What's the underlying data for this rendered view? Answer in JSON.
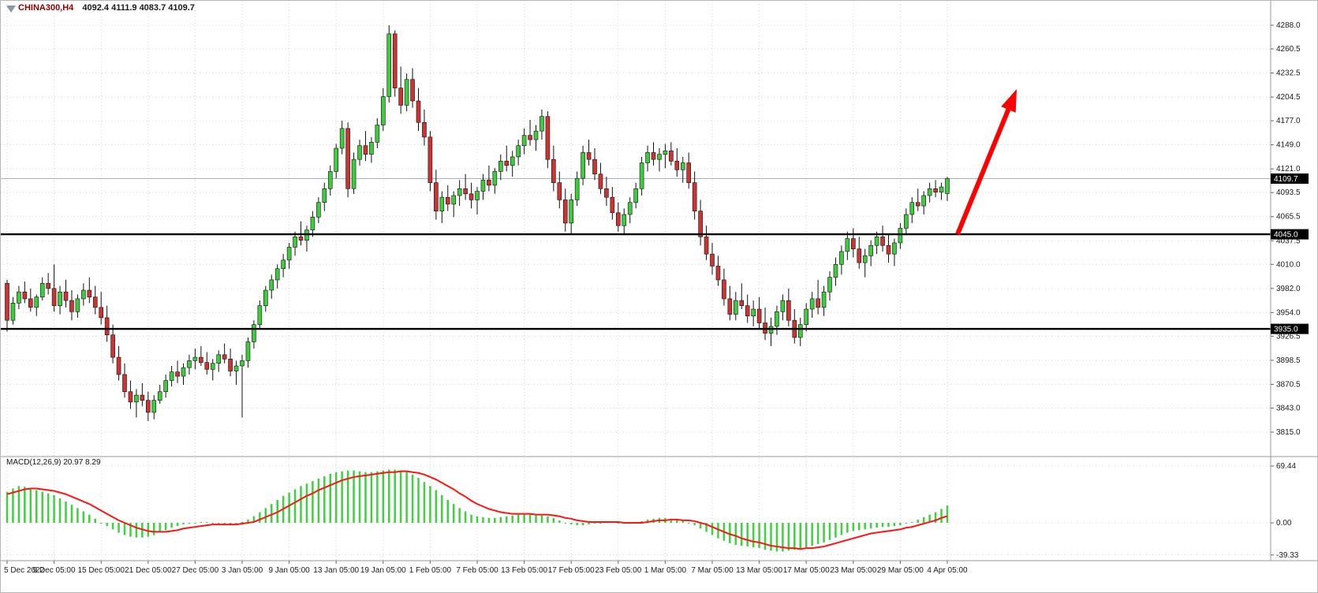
{
  "window_title": "CHINA300,H4",
  "colors": {
    "background": "#ffffff",
    "grid": "#d4d4d4",
    "bull_candle": "#3ecc3e",
    "bear_candle": "#cc3333",
    "candle_outline": "#111111",
    "hline": "#000000",
    "current_price_line": "#aab4bd",
    "histogram": "#3fd03f",
    "signal_line": "#ff1414",
    "arrow": "#ff0000",
    "axis_text": "#1a1a1a",
    "label_box_bg": "#000000",
    "label_box_text": "#ffffff",
    "separator": "#9a9a9a"
  },
  "chart_data": {
    "type": "candlestick",
    "symbol_period": "CHINA300,H4",
    "ohlc_text": "4092.4 4111.9 4083.7 4109.7",
    "ohlc": {
      "open": 4092.4,
      "high": 4111.9,
      "low": 4083.7,
      "close": 4109.7
    },
    "current_price": {
      "value": 4109.7,
      "label": "4109.7"
    },
    "price_ticks": [
      4288.0,
      4260.5,
      4232.5,
      4204.5,
      4177.0,
      4149.0,
      4121.0,
      4093.5,
      4065.5,
      4037.5,
      4010.0,
      3982.0,
      3954.0,
      3926.5,
      3898.5,
      3870.5,
      3843.0,
      3815.0
    ],
    "horizontal_lines": [
      {
        "price": 4045.0,
        "label": "4045.0"
      },
      {
        "price": 3935.0,
        "label": "3935.0"
      }
    ],
    "annotations": {
      "trend_arrow_up": true
    },
    "time_labels": [
      "5 Dec 2022",
      "9 Dec 05:00",
      "15 Dec 05:00",
      "21 Dec 05:00",
      "27 Dec 05:00",
      "3 Jan 05:00",
      "9 Jan 05:00",
      "13 Jan 05:00",
      "19 Jan 05:00",
      "1 Feb 05:00",
      "7 Feb 05:00",
      "13 Feb 05:00",
      "17 Feb 05:00",
      "23 Feb 05:00",
      "1 Mar 05:00",
      "7 Mar 05:00",
      "13 Mar 05:00",
      "17 Mar 05:00",
      "23 Mar 05:00",
      "29 Mar 05:00",
      "4 Apr 05:00"
    ],
    "bars_per_label": 8,
    "candles": [
      [
        3988,
        3992,
        3932,
        3945
      ],
      [
        3945,
        3972,
        3940,
        3965
      ],
      [
        3965,
        3985,
        3958,
        3978
      ],
      [
        3978,
        3990,
        3965,
        3970
      ],
      [
        3970,
        3982,
        3955,
        3960
      ],
      [
        3960,
        3975,
        3950,
        3972
      ],
      [
        3972,
        3995,
        3968,
        3988
      ],
      [
        3988,
        4000,
        3975,
        3982
      ],
      [
        3982,
        4010,
        3955,
        3962
      ],
      [
        3962,
        3985,
        3952,
        3978
      ],
      [
        3978,
        3992,
        3960,
        3968
      ],
      [
        3968,
        3980,
        3945,
        3955
      ],
      [
        3955,
        3975,
        3948,
        3970
      ],
      [
        3970,
        3988,
        3962,
        3980
      ],
      [
        3980,
        3995,
        3965,
        3972
      ],
      [
        3972,
        3985,
        3952,
        3960
      ],
      [
        3960,
        3978,
        3940,
        3948
      ],
      [
        3948,
        3962,
        3920,
        3928
      ],
      [
        3928,
        3940,
        3895,
        3902
      ],
      [
        3902,
        3915,
        3875,
        3882
      ],
      [
        3882,
        3895,
        3855,
        3862
      ],
      [
        3862,
        3875,
        3842,
        3850
      ],
      [
        3850,
        3865,
        3832,
        3858
      ],
      [
        3858,
        3872,
        3845,
        3852
      ],
      [
        3852,
        3862,
        3828,
        3838
      ],
      [
        3838,
        3858,
        3830,
        3852
      ],
      [
        3852,
        3870,
        3848,
        3862
      ],
      [
        3862,
        3882,
        3855,
        3875
      ],
      [
        3875,
        3892,
        3868,
        3885
      ],
      [
        3885,
        3898,
        3872,
        3880
      ],
      [
        3880,
        3895,
        3870,
        3890
      ],
      [
        3890,
        3905,
        3882,
        3898
      ],
      [
        3898,
        3912,
        3888,
        3902
      ],
      [
        3902,
        3915,
        3892,
        3896
      ],
      [
        3896,
        3908,
        3882,
        3888
      ],
      [
        3888,
        3900,
        3875,
        3895
      ],
      [
        3895,
        3910,
        3885,
        3905
      ],
      [
        3905,
        3918,
        3895,
        3900
      ],
      [
        3900,
        3912,
        3880,
        3886
      ],
      [
        3886,
        3898,
        3870,
        3892
      ],
      [
        3892,
        3905,
        3832,
        3898
      ],
      [
        3898,
        3925,
        3890,
        3920
      ],
      [
        3920,
        3945,
        3912,
        3940
      ],
      [
        3940,
        3968,
        3935,
        3962
      ],
      [
        3962,
        3985,
        3955,
        3980
      ],
      [
        3980,
        3998,
        3970,
        3992
      ],
      [
        3992,
        4010,
        3982,
        4005
      ],
      [
        4005,
        4022,
        3995,
        4015
      ],
      [
        4015,
        4035,
        4005,
        4030
      ],
      [
        4030,
        4048,
        4020,
        4042
      ],
      [
        4042,
        4060,
        4032,
        4038
      ],
      [
        4038,
        4055,
        4025,
        4050
      ],
      [
        4050,
        4072,
        4042,
        4065
      ],
      [
        4065,
        4088,
        4058,
        4082
      ],
      [
        4082,
        4105,
        4072,
        4098
      ],
      [
        4098,
        4125,
        4090,
        4118
      ],
      [
        4118,
        4150,
        4110,
        4145
      ],
      [
        4145,
        4177,
        4138,
        4168
      ],
      [
        4168,
        4175,
        4088,
        4098
      ],
      [
        4098,
        4140,
        4092,
        4132
      ],
      [
        4132,
        4155,
        4125,
        4148
      ],
      [
        4148,
        4165,
        4130,
        4138
      ],
      [
        4138,
        4158,
        4128,
        4152
      ],
      [
        4152,
        4180,
        4145,
        4172
      ],
      [
        4172,
        4215,
        4165,
        4205
      ],
      [
        4205,
        4288,
        4198,
        4278
      ],
      [
        4278,
        4282,
        4205,
        4215
      ],
      [
        4215,
        4240,
        4185,
        4195
      ],
      [
        4195,
        4232,
        4188,
        4225
      ],
      [
        4225,
        4238,
        4192,
        4200
      ],
      [
        4200,
        4215,
        4165,
        4175
      ],
      [
        4175,
        4190,
        4148,
        4158
      ],
      [
        4158,
        4165,
        4095,
        4105
      ],
      [
        4105,
        4120,
        4062,
        4072
      ],
      [
        4072,
        4095,
        4058,
        4088
      ],
      [
        4088,
        4102,
        4072,
        4080
      ],
      [
        4080,
        4095,
        4065,
        4090
      ],
      [
        4090,
        4108,
        4078,
        4098
      ],
      [
        4098,
        4115,
        4085,
        4092
      ],
      [
        4092,
        4105,
        4075,
        4085
      ],
      [
        4085,
        4100,
        4068,
        4095
      ],
      [
        4095,
        4115,
        4085,
        4108
      ],
      [
        4108,
        4125,
        4095,
        4102
      ],
      [
        4102,
        4122,
        4092,
        4118
      ],
      [
        4118,
        4138,
        4108,
        4130
      ],
      [
        4130,
        4148,
        4118,
        4125
      ],
      [
        4125,
        4142,
        4112,
        4135
      ],
      [
        4135,
        4155,
        4125,
        4148
      ],
      [
        4148,
        4168,
        4138,
        4160
      ],
      [
        4160,
        4178,
        4148,
        4155
      ],
      [
        4155,
        4172,
        4142,
        4165
      ],
      [
        4165,
        4190,
        4155,
        4182
      ],
      [
        4182,
        4188,
        4122,
        4132
      ],
      [
        4132,
        4148,
        4095,
        4105
      ],
      [
        4105,
        4118,
        4075,
        4085
      ],
      [
        4085,
        4098,
        4048,
        4058
      ],
      [
        4058,
        4092,
        4045,
        4085
      ],
      [
        4085,
        4118,
        4078,
        4110
      ],
      [
        4110,
        4148,
        4102,
        4140
      ],
      [
        4140,
        4155,
        4125,
        4132
      ],
      [
        4132,
        4145,
        4108,
        4115
      ],
      [
        4115,
        4128,
        4092,
        4098
      ],
      [
        4098,
        4112,
        4078,
        4088
      ],
      [
        4088,
        4100,
        4062,
        4070
      ],
      [
        4070,
        4082,
        4048,
        4055
      ],
      [
        4055,
        4075,
        4045,
        4068
      ],
      [
        4068,
        4088,
        4058,
        4082
      ],
      [
        4082,
        4105,
        4075,
        4098
      ],
      [
        4098,
        4135,
        4090,
        4128
      ],
      [
        4128,
        4148,
        4118,
        4140
      ],
      [
        4140,
        4152,
        4125,
        4132
      ],
      [
        4132,
        4145,
        4118,
        4138
      ],
      [
        4138,
        4150,
        4122,
        4142
      ],
      [
        4142,
        4152,
        4125,
        4130
      ],
      [
        4130,
        4145,
        4112,
        4120
      ],
      [
        4120,
        4135,
        4105,
        4128
      ],
      [
        4128,
        4140,
        4098,
        4105
      ],
      [
        4105,
        4118,
        4062,
        4072
      ],
      [
        4072,
        4085,
        4032,
        4042
      ],
      [
        4042,
        4055,
        4015,
        4022
      ],
      [
        4022,
        4035,
        3998,
        4008
      ],
      [
        4008,
        4020,
        3985,
        3992
      ],
      [
        3992,
        4005,
        3962,
        3970
      ],
      [
        3970,
        3985,
        3945,
        3952
      ],
      [
        3952,
        3978,
        3945,
        3968
      ],
      [
        3968,
        3988,
        3958,
        3962
      ],
      [
        3962,
        3975,
        3942,
        3950
      ],
      [
        3950,
        3968,
        3938,
        3958
      ],
      [
        3958,
        3972,
        3935,
        3942
      ],
      [
        3942,
        3960,
        3922,
        3930
      ],
      [
        3930,
        3948,
        3915,
        3938
      ],
      [
        3938,
        3962,
        3928,
        3955
      ],
      [
        3955,
        3975,
        3945,
        3968
      ],
      [
        3968,
        3982,
        3938,
        3945
      ],
      [
        3945,
        3958,
        3918,
        3925
      ],
      [
        3925,
        3948,
        3915,
        3940
      ],
      [
        3940,
        3965,
        3932,
        3958
      ],
      [
        3958,
        3978,
        3948,
        3970
      ],
      [
        3970,
        3992,
        3952,
        3960
      ],
      [
        3960,
        3985,
        3950,
        3978
      ],
      [
        3978,
        4002,
        3968,
        3995
      ],
      [
        3995,
        4018,
        3985,
        4010
      ],
      [
        4010,
        4032,
        3998,
        4025
      ],
      [
        4025,
        4048,
        4015,
        4040
      ],
      [
        4040,
        4052,
        4018,
        4028
      ],
      [
        4028,
        4042,
        4005,
        4012
      ],
      [
        4012,
        4028,
        3995,
        4020
      ],
      [
        4020,
        4038,
        4008,
        4032
      ],
      [
        4032,
        4048,
        4022,
        4042
      ],
      [
        4042,
        4055,
        4025,
        4032
      ],
      [
        4032,
        4045,
        4012,
        4022
      ],
      [
        4022,
        4040,
        4008,
        4035
      ],
      [
        4035,
        4058,
        4028,
        4052
      ],
      [
        4052,
        4075,
        4045,
        4068
      ],
      [
        4068,
        4088,
        4058,
        4082
      ],
      [
        4082,
        4098,
        4072,
        4078
      ],
      [
        4078,
        4095,
        4068,
        4090
      ],
      [
        4090,
        4105,
        4082,
        4098
      ],
      [
        4098,
        4108,
        4088,
        4094
      ],
      [
        4094,
        4105,
        4085,
        4100
      ],
      [
        4092.4,
        4111.9,
        4083.7,
        4109.7
      ]
    ],
    "macd": {
      "label": "MACD(12,26,9) 20.97 8.29",
      "main_value": 20.97,
      "signal_value": 8.29,
      "axis_tick_labels": [
        "69.44",
        "0.00",
        "-39.33"
      ],
      "axis_values": [
        69.44,
        0.0,
        -39.33
      ],
      "histogram": [
        38,
        42,
        45,
        44,
        42,
        40,
        38,
        36,
        34,
        30,
        26,
        22,
        18,
        14,
        10,
        5,
        0,
        -4,
        -8,
        -12,
        -15,
        -17,
        -18,
        -18,
        -17,
        -15,
        -12,
        -9,
        -6,
        -4,
        -2,
        -1,
        0,
        1,
        1,
        0,
        -1,
        -2,
        -2,
        -1,
        1,
        4,
        8,
        13,
        18,
        23,
        28,
        33,
        37,
        41,
        45,
        48,
        51,
        54,
        57,
        60,
        62,
        63,
        64,
        64,
        63,
        62,
        62,
        63,
        64,
        65,
        65,
        64,
        62,
        59,
        55,
        50,
        45,
        40,
        34,
        28,
        23,
        18,
        14,
        10,
        8,
        7,
        6,
        6,
        7,
        8,
        9,
        10,
        10,
        10,
        9,
        9,
        8,
        6,
        3,
        0,
        -2,
        -3,
        -3,
        -2,
        -1,
        0,
        1,
        1,
        0,
        -1,
        -1,
        0,
        2,
        4,
        5,
        6,
        6,
        5,
        4,
        2,
        0,
        -3,
        -7,
        -11,
        -15,
        -19,
        -22,
        -25,
        -27,
        -28,
        -29,
        -30,
        -31,
        -33,
        -34,
        -35,
        -35,
        -34,
        -33,
        -32,
        -30,
        -28,
        -26,
        -24,
        -21,
        -18,
        -15,
        -12,
        -10,
        -9,
        -8,
        -7,
        -6,
        -5,
        -5,
        -4,
        -3,
        -1,
        1,
        4,
        7,
        10,
        13,
        17,
        20.97
      ],
      "signal": [
        35,
        37,
        39,
        41,
        42,
        42,
        41,
        40,
        39,
        37,
        35,
        32,
        29,
        26,
        23,
        19,
        15,
        11,
        7,
        3,
        0,
        -3,
        -6,
        -8,
        -10,
        -11,
        -11,
        -11,
        -10,
        -9,
        -7,
        -6,
        -5,
        -4,
        -3,
        -2,
        -2,
        -2,
        -2,
        -2,
        -1,
        0,
        1,
        4,
        7,
        10,
        13,
        17,
        21,
        25,
        29,
        33,
        36,
        40,
        43,
        46,
        49,
        52,
        54,
        56,
        57,
        58,
        59,
        60,
        61,
        62,
        62,
        63,
        63,
        62,
        61,
        59,
        56,
        53,
        49,
        45,
        41,
        36,
        32,
        27,
        23,
        20,
        17,
        15,
        13,
        12,
        11,
        11,
        11,
        11,
        10,
        10,
        10,
        9,
        8,
        6,
        5,
        3,
        2,
        1,
        1,
        1,
        1,
        1,
        1,
        0,
        0,
        0,
        0,
        1,
        2,
        3,
        3,
        4,
        4,
        3,
        3,
        2,
        0,
        -2,
        -5,
        -8,
        -11,
        -14,
        -16,
        -19,
        -21,
        -23,
        -24,
        -26,
        -28,
        -29,
        -30,
        -31,
        -31,
        -32,
        -31,
        -31,
        -30,
        -29,
        -27,
        -25,
        -23,
        -21,
        -19,
        -17,
        -15,
        -13,
        -12,
        -11,
        -10,
        -9,
        -8,
        -6,
        -5,
        -3,
        -1,
        1,
        3,
        6,
        8.29
      ]
    }
  }
}
